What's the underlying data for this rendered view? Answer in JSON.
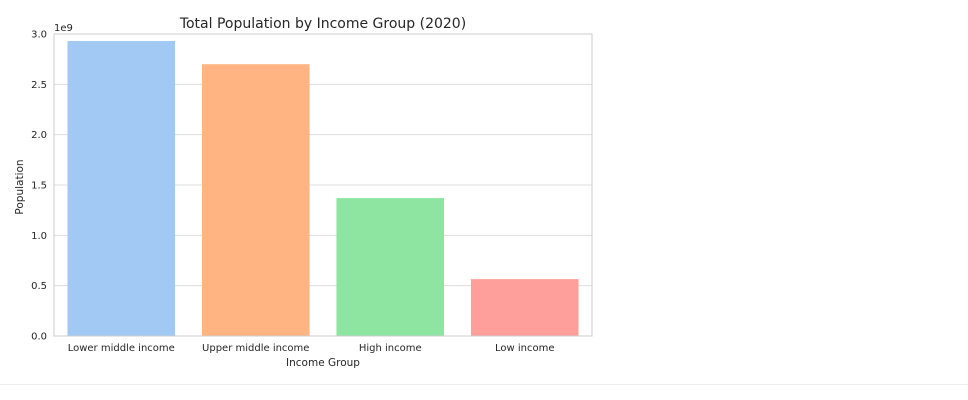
{
  "chart_data": {
    "type": "bar",
    "title": "Total Population by Income Group (2020)",
    "xlabel": "Income Group",
    "ylabel": "Population",
    "scale_label": "1e9",
    "categories": [
      "Lower middle income",
      "Upper middle income",
      "High income",
      "Low income"
    ],
    "values": [
      2930000000,
      2700000000,
      1370000000,
      565000000
    ],
    "colors": [
      "#a1c9f4",
      "#ffb482",
      "#8de5a1",
      "#ff9f9b"
    ],
    "ylim": [
      0,
      3000000000
    ],
    "yticks": [
      0,
      500000000,
      1000000000,
      1500000000,
      2000000000,
      2500000000,
      3000000000
    ],
    "ytick_labels": [
      "0.0",
      "0.5",
      "1.0",
      "1.5",
      "2.0",
      "2.5",
      "3.0"
    ],
    "grid": true,
    "legend": "none"
  }
}
